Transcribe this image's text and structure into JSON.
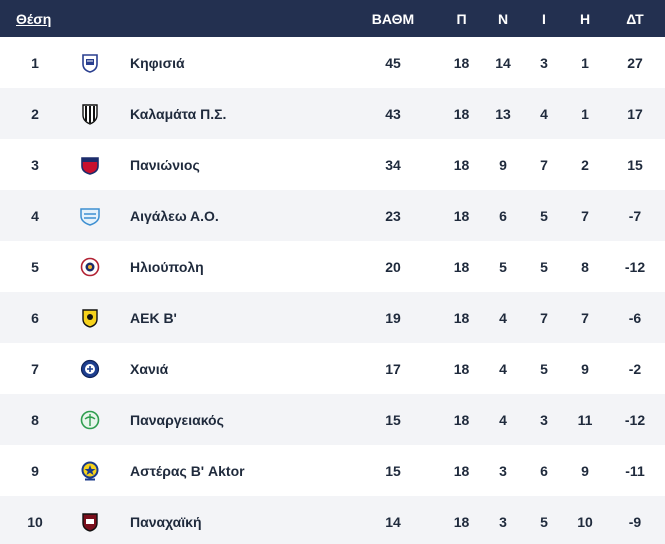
{
  "header": {
    "pos": "Θέση",
    "points": "ΒΑΘΜ",
    "played": "Π",
    "won": "Ν",
    "drawn": "Ι",
    "lost": "Η",
    "gd": "ΔΤ"
  },
  "rows": [
    {
      "pos": "1",
      "team": "Κηφισιά",
      "points": "45",
      "played": "18",
      "won": "14",
      "drawn": "3",
      "lost": "1",
      "gd": "27",
      "logo": "kifisia-crest-icon"
    },
    {
      "pos": "2",
      "team": "Καλαμάτα Π.Σ.",
      "points": "43",
      "played": "18",
      "won": "13",
      "drawn": "4",
      "lost": "1",
      "gd": "17",
      "logo": "kalamata-crest-icon"
    },
    {
      "pos": "3",
      "team": "Πανιώνιος",
      "points": "34",
      "played": "18",
      "won": "9",
      "drawn": "7",
      "lost": "2",
      "gd": "15",
      "logo": "panionios-crest-icon"
    },
    {
      "pos": "4",
      "team": "Αιγάλεω Α.Ο.",
      "points": "23",
      "played": "18",
      "won": "6",
      "drawn": "5",
      "lost": "7",
      "gd": "-7",
      "logo": "aigaleo-crest-icon"
    },
    {
      "pos": "5",
      "team": "Ηλιούπολη",
      "points": "20",
      "played": "18",
      "won": "5",
      "drawn": "5",
      "lost": "8",
      "gd": "-12",
      "logo": "ilioupoli-crest-icon"
    },
    {
      "pos": "6",
      "team": "ΑΕΚ Β'",
      "points": "19",
      "played": "18",
      "won": "4",
      "drawn": "7",
      "lost": "7",
      "gd": "-6",
      "logo": "aek-crest-icon"
    },
    {
      "pos": "7",
      "team": "Χανιά",
      "points": "17",
      "played": "18",
      "won": "4",
      "drawn": "5",
      "lost": "9",
      "gd": "-2",
      "logo": "chania-crest-icon"
    },
    {
      "pos": "8",
      "team": "Παναργειακός",
      "points": "15",
      "played": "18",
      "won": "4",
      "drawn": "3",
      "lost": "11",
      "gd": "-12",
      "logo": "panargiakos-crest-icon"
    },
    {
      "pos": "9",
      "team": "Αστέρας Β' Aktor",
      "points": "15",
      "played": "18",
      "won": "3",
      "drawn": "6",
      "lost": "9",
      "gd": "-11",
      "logo": "asteras-crest-icon"
    },
    {
      "pos": "10",
      "team": "Παναχαϊκή",
      "points": "14",
      "played": "18",
      "won": "3",
      "drawn": "5",
      "lost": "10",
      "gd": "-9",
      "logo": "panachaiki-crest-icon"
    }
  ],
  "colors": {
    "header_bg": "#233050",
    "row_alt_bg": "#f3f4f7",
    "text": "#1f2a3c"
  }
}
